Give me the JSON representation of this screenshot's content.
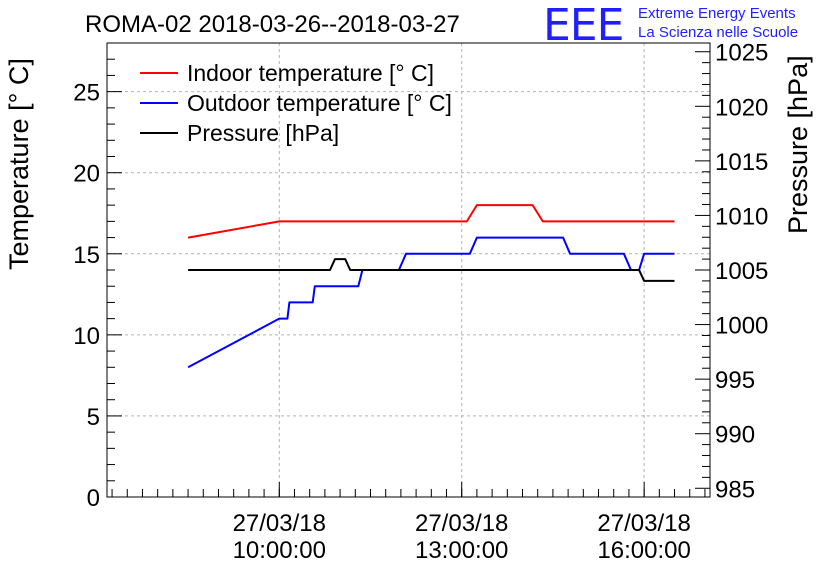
{
  "logo": {
    "letters": "EEE",
    "line1": "Extreme Energy Events",
    "line2": "La Scienza nelle Scuole",
    "color": "#1f1fff"
  },
  "chart_data": {
    "type": "line",
    "title": "ROMA-02 2018-03-26--2018-03-27",
    "ylabel": "Temperature [° C]",
    "y2label": "Pressure [hPa]",
    "ylim": [
      0,
      28
    ],
    "y2lim": [
      984.2,
      1025.8
    ],
    "xlim": [
      "2018-03-27 07:10:00",
      "2018-03-27 17:05:00"
    ],
    "yticks": [
      0,
      5,
      10,
      15,
      20,
      25
    ],
    "y2ticks": [
      985,
      990,
      995,
      1000,
      1005,
      1010,
      1015,
      1020,
      1025
    ],
    "xticks": [
      {
        "t": "2018-03-27 10:00:00",
        "date": "27/03/18",
        "time": "10:00:00"
      },
      {
        "t": "2018-03-27 13:00:00",
        "date": "27/03/18",
        "time": "13:00:00"
      },
      {
        "t": "2018-03-27 16:00:00",
        "date": "27/03/18",
        "time": "16:00:00"
      }
    ],
    "grid": true,
    "legend_position": "top-left",
    "series": [
      {
        "name": "Indoor temperature [° C]",
        "color": "#ff0000",
        "axis": "left",
        "x": [
          "2018-03-27 08:30:00",
          "2018-03-27 10:00:00",
          "2018-03-27 13:05:00",
          "2018-03-27 13:15:00",
          "2018-03-27 14:10:00",
          "2018-03-27 14:20:00",
          "2018-03-27 16:30:00"
        ],
        "values": [
          16,
          17,
          17,
          18,
          18,
          17,
          17
        ]
      },
      {
        "name": "Outdoor temperature [° C]",
        "color": "#0000ff",
        "axis": "left",
        "x": [
          "2018-03-27 08:30:00",
          "2018-03-27 10:00:00",
          "2018-03-27 10:08:00",
          "2018-03-27 10:10:00",
          "2018-03-27 10:33:00",
          "2018-03-27 10:35:00",
          "2018-03-27 11:18:00",
          "2018-03-27 11:22:00",
          "2018-03-27 11:58:00",
          "2018-03-27 12:05:00",
          "2018-03-27 13:08:00",
          "2018-03-27 13:15:00",
          "2018-03-27 14:40:00",
          "2018-03-27 14:47:00",
          "2018-03-27 15:40:00",
          "2018-03-27 15:47:00",
          "2018-03-27 15:55:00",
          "2018-03-27 16:00:00",
          "2018-03-27 16:30:00"
        ],
        "values": [
          8,
          11,
          11,
          12,
          12,
          13,
          13,
          14,
          14,
          15,
          15,
          16,
          16,
          15,
          15,
          14,
          14,
          15,
          15
        ]
      },
      {
        "name": "Pressure [hPa]",
        "color": "#000000",
        "axis": "right",
        "x": [
          "2018-03-27 08:30:00",
          "2018-03-27 10:50:00",
          "2018-03-27 10:55:00",
          "2018-03-27 11:05:00",
          "2018-03-27 11:10:00",
          "2018-03-27 15:55:00",
          "2018-03-27 16:00:00",
          "2018-03-27 16:30:00"
        ],
        "values": [
          1005,
          1005,
          1006,
          1006,
          1005,
          1005,
          1004,
          1004
        ]
      }
    ]
  }
}
